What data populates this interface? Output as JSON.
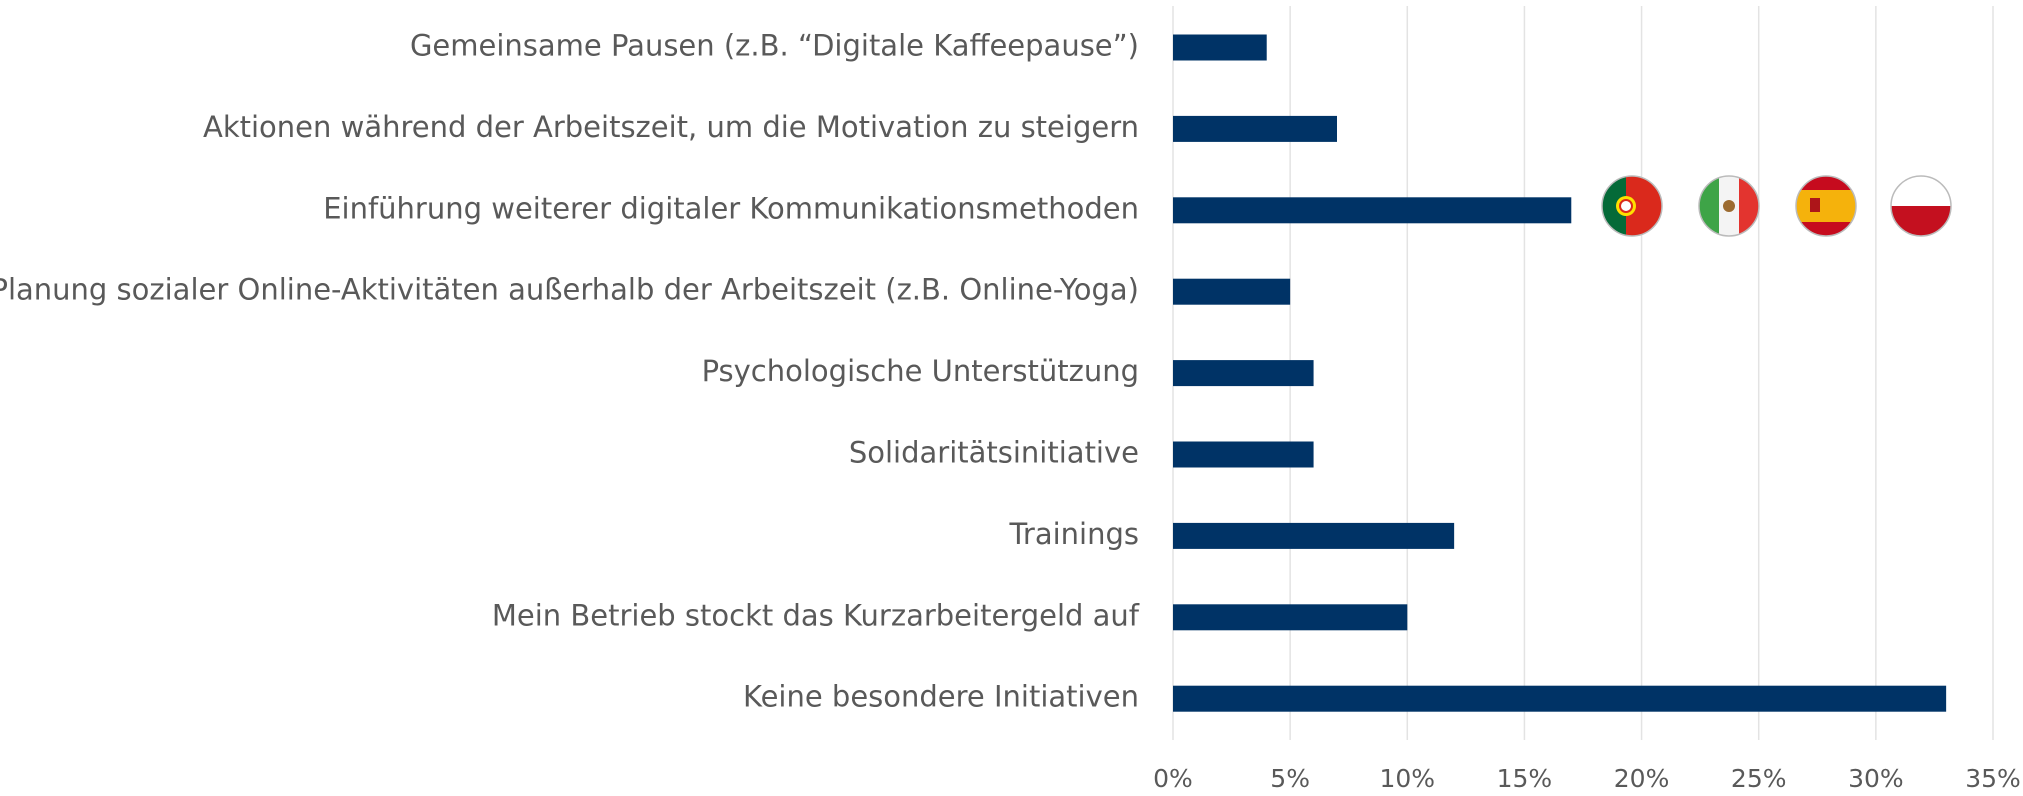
{
  "chart_data": {
    "type": "bar",
    "orientation": "horizontal",
    "categories": [
      "Gemeinsame Pausen (z.B. “Digitale Kaffeepause”)",
      "Aktionen während der Arbeitszeit, um die Motivation zu steigern",
      "Einführung weiterer digitaler Kommunikationsmethoden",
      "Planung sozialer Online-Aktivitäten außerhalb der Arbeitszeit (z.B. Online-Yoga)",
      "Psychologische Unterstützung",
      "Solidaritätsinitiative",
      "Trainings",
      "Mein Betrieb stockt das Kurzarbeitergeld auf",
      "Keine besondere Initiativen"
    ],
    "values": [
      4,
      7,
      17,
      5,
      6,
      6,
      12,
      10,
      33
    ],
    "color": "#003366",
    "xlim": [
      0,
      35
    ],
    "xticks": [
      {
        "value": 0,
        "label": "0%"
      },
      {
        "value": 5,
        "label": "5%"
      },
      {
        "value": 10,
        "label": "10%"
      },
      {
        "value": 15,
        "label": "15%"
      },
      {
        "value": 20,
        "label": "20%"
      },
      {
        "value": 25,
        "label": "25%"
      },
      {
        "value": 30,
        "label": "30%"
      },
      {
        "value": 35,
        "label": "35%"
      }
    ],
    "grid": true
  }
}
